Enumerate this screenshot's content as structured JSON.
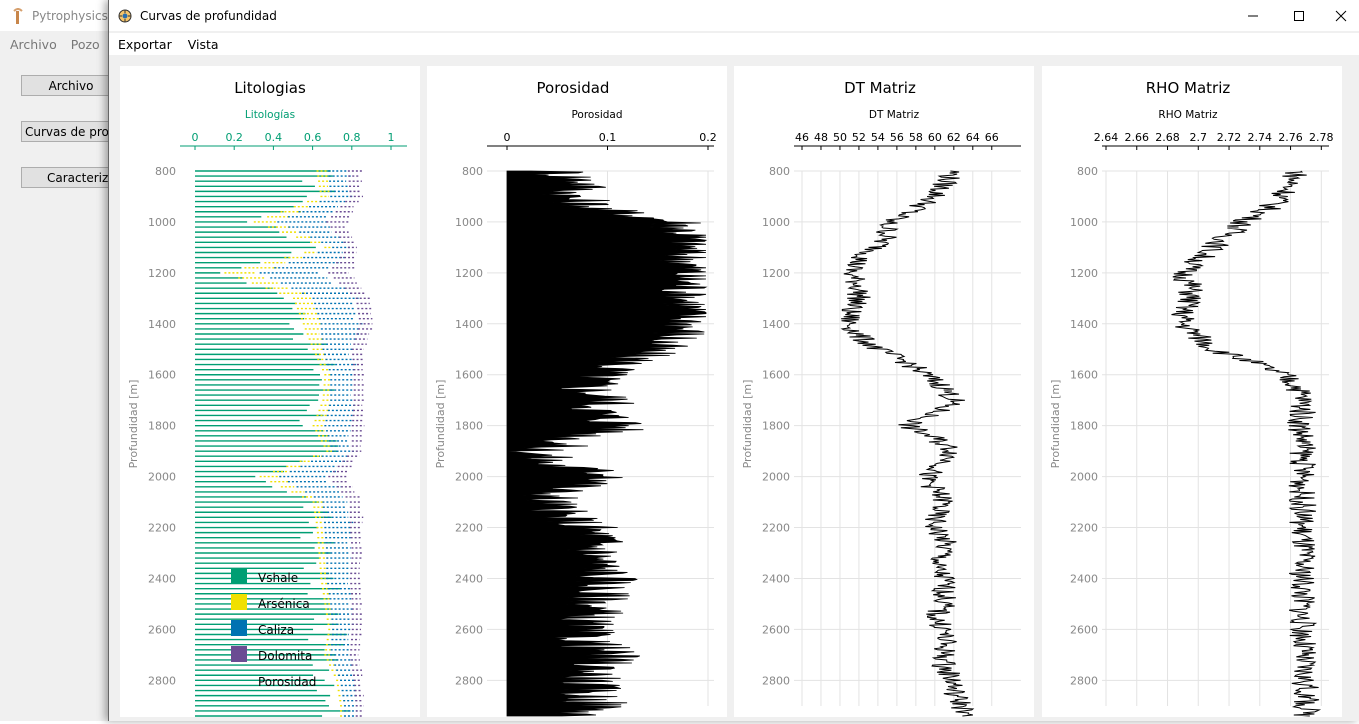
{
  "main_window": {
    "title": "Pytrophysics",
    "menu": [
      "Archivo",
      "Pozo"
    ],
    "buttons": [
      "Archivo",
      "Curvas de profundidad",
      "Caracterizacion"
    ]
  },
  "window": {
    "title": "Curvas de profundidad",
    "menu": [
      "Exportar",
      "Vista"
    ]
  },
  "colors": {
    "vshale": "#009e73",
    "arsenica": "#f0e000",
    "caliza": "#0072b2",
    "dolomita": "#6a4c93",
    "accent_axis": "#009e73",
    "curve": "#000000"
  },
  "chart_data": [
    {
      "type": "area",
      "title": "Litologias",
      "xlabel": "Litologías",
      "ylabel": "Profundidad [m]",
      "xlim": [
        0,
        1
      ],
      "xticks": [
        0,
        0.2,
        0.4,
        0.6,
        0.8,
        1
      ],
      "xtick_labels": [
        "0",
        "0.2",
        "0.4",
        "0.6",
        "0.8",
        "1"
      ],
      "ylim": [
        2940,
        790
      ],
      "yticks": [
        800,
        1000,
        1200,
        1400,
        1600,
        1800,
        2000,
        2200,
        2400,
        2600,
        2800
      ],
      "legend_position": "bottom-center",
      "series": [
        {
          "name": "Vshale",
          "depth": [
            800,
            900,
            1000,
            1100,
            1200,
            1300,
            1400,
            1500,
            1600,
            1700,
            1800,
            1900,
            2000,
            2100,
            2200,
            2300,
            2400,
            2500,
            2600,
            2700,
            2800,
            2900
          ],
          "values": [
            0.62,
            0.64,
            0.3,
            0.66,
            0.15,
            0.5,
            0.55,
            0.6,
            0.66,
            0.65,
            0.6,
            0.67,
            0.33,
            0.6,
            0.62,
            0.63,
            0.64,
            0.66,
            0.68,
            0.66,
            0.72,
            0.74
          ]
        },
        {
          "name": "Arsénica",
          "depth": [
            800,
            900,
            1000,
            1100,
            1200,
            1300,
            1400,
            1500,
            1600,
            1700,
            1800,
            1900,
            2000,
            2100,
            2200,
            2300,
            2400,
            2500,
            2600,
            2700,
            2800,
            2900
          ],
          "values": [
            0.06,
            0.05,
            0.12,
            0.04,
            0.18,
            0.1,
            0.09,
            0.05,
            0.03,
            0.04,
            0.06,
            0.03,
            0.1,
            0.05,
            0.04,
            0.04,
            0.03,
            0.03,
            0.02,
            0.03,
            0.02,
            0.02
          ]
        },
        {
          "name": "Caliza",
          "depth": [
            800,
            900,
            1000,
            1100,
            1200,
            1300,
            1400,
            1500,
            1600,
            1700,
            1800,
            1900,
            2000,
            2100,
            2200,
            2300,
            2400,
            2500,
            2600,
            2700,
            2800,
            2900
          ],
          "values": [
            0.1,
            0.1,
            0.25,
            0.08,
            0.35,
            0.22,
            0.2,
            0.15,
            0.12,
            0.12,
            0.14,
            0.1,
            0.25,
            0.14,
            0.13,
            0.13,
            0.12,
            0.11,
            0.1,
            0.1,
            0.07,
            0.06
          ]
        },
        {
          "name": "Dolomita",
          "depth": [
            800,
            900,
            1000,
            1100,
            1200,
            1300,
            1400,
            1500,
            1600,
            1700,
            1800,
            1900,
            2000,
            2100,
            2200,
            2300,
            2400,
            2500,
            2600,
            2700,
            2800,
            2900
          ],
          "values": [
            0.07,
            0.06,
            0.1,
            0.05,
            0.12,
            0.08,
            0.07,
            0.06,
            0.05,
            0.05,
            0.06,
            0.05,
            0.09,
            0.06,
            0.06,
            0.05,
            0.05,
            0.05,
            0.05,
            0.05,
            0.04,
            0.04
          ]
        },
        {
          "name": "Porosidad",
          "depth": [
            800,
            900,
            1000,
            1100,
            1200,
            1300,
            1400,
            1500,
            1600,
            1700,
            1800,
            1900,
            2000,
            2100,
            2200,
            2300,
            2400,
            2500,
            2600,
            2700,
            2800,
            2900
          ],
          "values": [
            0.15,
            0.15,
            0.23,
            0.17,
            0.2,
            0.1,
            0.09,
            0.14,
            0.14,
            0.14,
            0.14,
            0.15,
            0.23,
            0.15,
            0.15,
            0.15,
            0.16,
            0.15,
            0.15,
            0.16,
            0.17,
            0.14
          ]
        }
      ]
    },
    {
      "type": "area",
      "title": "Porosidad",
      "xlabel": "Porosidad",
      "ylabel": "Profundidad [m]",
      "xlim": [
        0,
        0.2
      ],
      "xticks": [
        0,
        0.1,
        0.2
      ],
      "xtick_labels": [
        "0",
        "0.1",
        "0.2"
      ],
      "ylim": [
        2940,
        790
      ],
      "yticks": [
        800,
        1000,
        1200,
        1400,
        1600,
        1800,
        2000,
        2200,
        2400,
        2600,
        2800
      ],
      "depth": [
        800,
        850,
        900,
        950,
        1000,
        1050,
        1100,
        1150,
        1200,
        1250,
        1300,
        1350,
        1400,
        1450,
        1500,
        1550,
        1600,
        1650,
        1700,
        1750,
        1800,
        1850,
        1900,
        1950,
        2000,
        2050,
        2100,
        2150,
        2200,
        2250,
        2300,
        2350,
        2400,
        2450,
        2500,
        2550,
        2600,
        2650,
        2700,
        2750,
        2800,
        2850,
        2900,
        2940
      ],
      "values": [
        0.05,
        0.08,
        0.06,
        0.09,
        0.17,
        0.18,
        0.18,
        0.18,
        0.18,
        0.18,
        0.18,
        0.18,
        0.18,
        0.17,
        0.14,
        0.12,
        0.09,
        0.08,
        0.1,
        0.09,
        0.12,
        0.07,
        0.03,
        0.04,
        0.12,
        0.05,
        0.04,
        0.05,
        0.08,
        0.09,
        0.09,
        0.09,
        0.1,
        0.09,
        0.09,
        0.08,
        0.07,
        0.08,
        0.1,
        0.09,
        0.08,
        0.08,
        0.09,
        0.07
      ]
    },
    {
      "type": "line",
      "title": "DT Matriz",
      "xlabel": "DT Matriz",
      "ylabel": "Profundidad [m]",
      "xlim": [
        46,
        67.5
      ],
      "xticks": [
        46,
        48,
        50,
        52,
        54,
        56,
        58,
        60,
        62,
        64,
        66
      ],
      "xtick_labels": [
        "46",
        "48",
        "50",
        "52",
        "54",
        "56",
        "58",
        "60",
        "62",
        "64",
        "66"
      ],
      "ylim": [
        2940,
        790
      ],
      "yticks": [
        800,
        1000,
        1200,
        1400,
        1600,
        1800,
        2000,
        2200,
        2400,
        2600,
        2800
      ],
      "depth": [
        800,
        850,
        900,
        950,
        1000,
        1050,
        1100,
        1150,
        1200,
        1250,
        1300,
        1350,
        1400,
        1450,
        1500,
        1550,
        1600,
        1650,
        1700,
        1750,
        1800,
        1850,
        1900,
        1950,
        2000,
        2050,
        2100,
        2150,
        2200,
        2250,
        2300,
        2350,
        2400,
        2450,
        2500,
        2550,
        2600,
        2650,
        2700,
        2750,
        2800,
        2850,
        2900,
        2940
      ],
      "values": [
        62,
        61,
        60,
        58,
        55,
        55,
        54,
        52,
        51,
        52,
        52,
        51,
        51,
        52,
        54,
        57,
        59,
        61,
        62,
        60,
        57,
        60,
        62,
        61,
        59,
        60,
        61,
        60,
        60,
        61,
        61,
        60,
        61,
        61,
        61,
        60,
        61,
        61,
        61,
        61,
        62,
        62,
        63,
        63
      ]
    },
    {
      "type": "line",
      "title": "RHO Matriz",
      "xlabel": "RHO Matriz",
      "ylabel": "Profundidad [m]",
      "xlim": [
        2.64,
        2.785
      ],
      "xticks": [
        2.64,
        2.66,
        2.68,
        2.7,
        2.72,
        2.74,
        2.76,
        2.78
      ],
      "xtick_labels": [
        "2.64",
        "2.66",
        "2.68",
        "2.7",
        "2.72",
        "2.74",
        "2.76",
        "2.78"
      ],
      "ylim": [
        2940,
        790
      ],
      "yticks": [
        800,
        1000,
        1200,
        1400,
        1600,
        1800,
        2000,
        2200,
        2400,
        2600,
        2800
      ],
      "depth": [
        800,
        850,
        900,
        950,
        1000,
        1050,
        1100,
        1150,
        1200,
        1250,
        1300,
        1350,
        1400,
        1450,
        1500,
        1550,
        1600,
        1650,
        1700,
        1750,
        1800,
        1850,
        1900,
        1950,
        2000,
        2050,
        2100,
        2150,
        2200,
        2250,
        2300,
        2350,
        2400,
        2450,
        2500,
        2550,
        2600,
        2650,
        2700,
        2750,
        2800,
        2850,
        2900,
        2940
      ],
      "values": [
        2.765,
        2.76,
        2.755,
        2.745,
        2.73,
        2.72,
        2.71,
        2.7,
        2.69,
        2.695,
        2.695,
        2.69,
        2.69,
        2.7,
        2.71,
        2.735,
        2.755,
        2.765,
        2.768,
        2.768,
        2.766,
        2.768,
        2.768,
        2.768,
        2.768,
        2.767,
        2.768,
        2.768,
        2.767,
        2.768,
        2.768,
        2.767,
        2.768,
        2.768,
        2.768,
        2.767,
        2.768,
        2.768,
        2.768,
        2.768,
        2.769,
        2.77,
        2.77,
        2.77
      ]
    }
  ]
}
